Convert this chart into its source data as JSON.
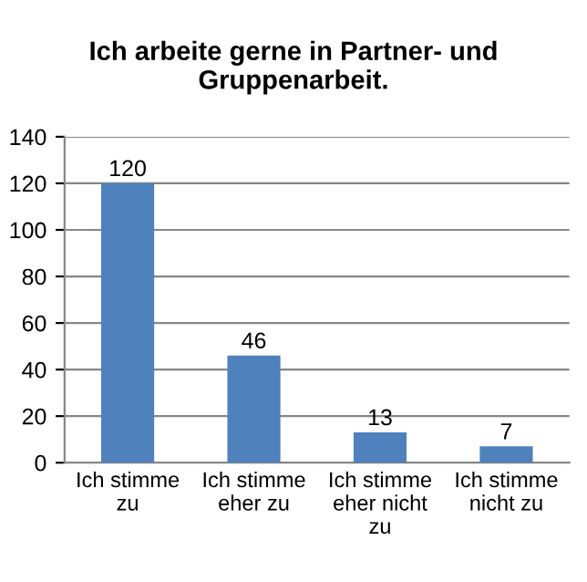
{
  "chart_data": {
    "type": "bar",
    "title": "Ich arbeite gerne in Partner- und\nGruppenarbeit.",
    "categories": [
      "Ich stimme\nzu",
      "Ich stimme\neher zu",
      "Ich stimme\neher nicht\nzu",
      "Ich stimme\nnicht zu"
    ],
    "values": [
      120,
      46,
      13,
      7
    ],
    "color": "#4f81bd",
    "ylim": [
      0,
      140
    ],
    "yticks": [
      0,
      20,
      40,
      60,
      80,
      100,
      120,
      140
    ],
    "grid": "y",
    "data_labels": true
  }
}
